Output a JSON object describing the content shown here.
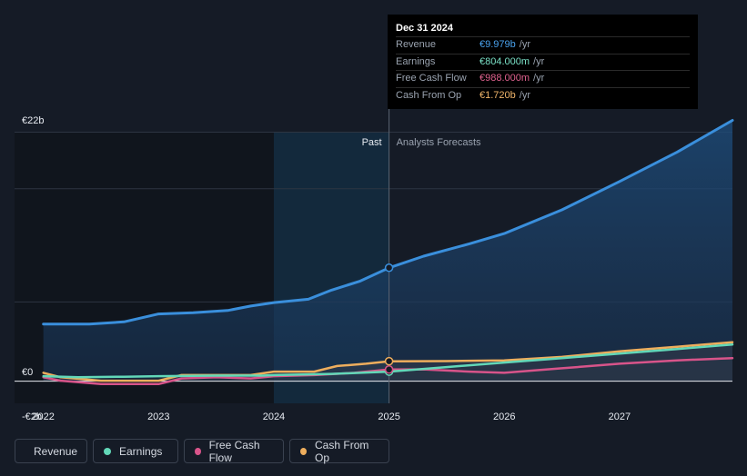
{
  "tooltip": {
    "date": "Dec 31 2024",
    "rows": [
      {
        "label": "Revenue",
        "value": "€9.979b",
        "unit": "/yr",
        "color": "#4aa3ef"
      },
      {
        "label": "Earnings",
        "value": "€804.000m",
        "unit": "/yr",
        "color": "#7be2c8"
      },
      {
        "label": "Free Cash Flow",
        "value": "€988.000m",
        "unit": "/yr",
        "color": "#e0628f"
      },
      {
        "label": "Cash From Op",
        "value": "€1.720b",
        "unit": "/yr",
        "color": "#f0b56a"
      }
    ]
  },
  "chart_data": {
    "type": "line",
    "past_label": "Past",
    "forecast_label": "Analysts Forecasts",
    "y_tick_labels": [
      "€22b",
      "€0",
      "-€2b"
    ],
    "x_tick_labels": [
      "2022",
      "2023",
      "2024",
      "2025",
      "2026",
      "2027"
    ],
    "ylim": [
      -2,
      22
    ],
    "xlim": [
      2021.75,
      2027.98
    ],
    "divider_x": 2025.0,
    "highlight_range": [
      2024.0,
      2025.0
    ],
    "grid": true,
    "legend_position": "bottom",
    "series": [
      {
        "name": "Revenue",
        "color": "#3a8fdc",
        "points": [
          [
            2022.0,
            5.0
          ],
          [
            2022.4,
            5.0
          ],
          [
            2022.7,
            5.2
          ],
          [
            2023.0,
            5.9
          ],
          [
            2023.3,
            6.0
          ],
          [
            2023.6,
            6.2
          ],
          [
            2023.8,
            6.6
          ],
          [
            2024.0,
            6.9
          ],
          [
            2024.3,
            7.2
          ],
          [
            2024.5,
            8.0
          ],
          [
            2024.75,
            8.8
          ],
          [
            2025.0,
            9.979
          ],
          [
            2025.3,
            11.0
          ],
          [
            2025.7,
            12.1
          ],
          [
            2026.0,
            13.0
          ],
          [
            2026.5,
            15.1
          ],
          [
            2027.0,
            17.6
          ],
          [
            2027.5,
            20.2
          ],
          [
            2027.98,
            23.0
          ]
        ]
      },
      {
        "name": "Earnings",
        "color": "#62d8b8",
        "points": [
          [
            2022.0,
            0.4
          ],
          [
            2022.3,
            0.3
          ],
          [
            2022.7,
            0.35
          ],
          [
            2023.0,
            0.4
          ],
          [
            2023.5,
            0.45
          ],
          [
            2023.9,
            0.45
          ],
          [
            2024.0,
            0.5
          ],
          [
            2024.5,
            0.6
          ],
          [
            2025.0,
            0.804
          ],
          [
            2025.5,
            1.2
          ],
          [
            2026.0,
            1.6
          ],
          [
            2026.5,
            2.0
          ],
          [
            2027.0,
            2.4
          ],
          [
            2027.5,
            2.8
          ],
          [
            2027.98,
            3.2
          ]
        ]
      },
      {
        "name": "Free Cash Flow",
        "color": "#d8548a",
        "points": [
          [
            2022.0,
            0.3
          ],
          [
            2022.15,
            0.0
          ],
          [
            2022.5,
            -0.3
          ],
          [
            2022.8,
            -0.3
          ],
          [
            2023.0,
            -0.3
          ],
          [
            2023.2,
            0.2
          ],
          [
            2023.5,
            0.3
          ],
          [
            2023.8,
            0.2
          ],
          [
            2024.0,
            0.4
          ],
          [
            2024.35,
            0.5
          ],
          [
            2024.7,
            0.7
          ],
          [
            2025.0,
            0.988
          ],
          [
            2025.3,
            1.0
          ],
          [
            2025.7,
            0.8
          ],
          [
            2026.0,
            0.7
          ],
          [
            2026.5,
            1.1
          ],
          [
            2027.0,
            1.5
          ],
          [
            2027.5,
            1.8
          ],
          [
            2027.98,
            2.0
          ]
        ]
      },
      {
        "name": "Cash From Op",
        "color": "#eeae5d",
        "points": [
          [
            2022.0,
            0.7
          ],
          [
            2022.15,
            0.3
          ],
          [
            2022.5,
            0.0
          ],
          [
            2022.8,
            0.0
          ],
          [
            2023.0,
            0.0
          ],
          [
            2023.2,
            0.5
          ],
          [
            2023.5,
            0.5
          ],
          [
            2023.8,
            0.5
          ],
          [
            2024.0,
            0.8
          ],
          [
            2024.35,
            0.8
          ],
          [
            2024.55,
            1.3
          ],
          [
            2024.8,
            1.5
          ],
          [
            2025.0,
            1.72
          ],
          [
            2025.5,
            1.73
          ],
          [
            2026.0,
            1.8
          ],
          [
            2026.5,
            2.1
          ],
          [
            2027.0,
            2.6
          ],
          [
            2027.5,
            3.0
          ],
          [
            2027.98,
            3.4
          ]
        ]
      }
    ]
  },
  "legend": [
    {
      "label": "Revenue",
      "color": "#3a8fdc"
    },
    {
      "label": "Earnings",
      "color": "#62d8b8"
    },
    {
      "label": "Free Cash Flow",
      "color": "#d8548a"
    },
    {
      "label": "Cash From Op",
      "color": "#eeae5d"
    }
  ]
}
